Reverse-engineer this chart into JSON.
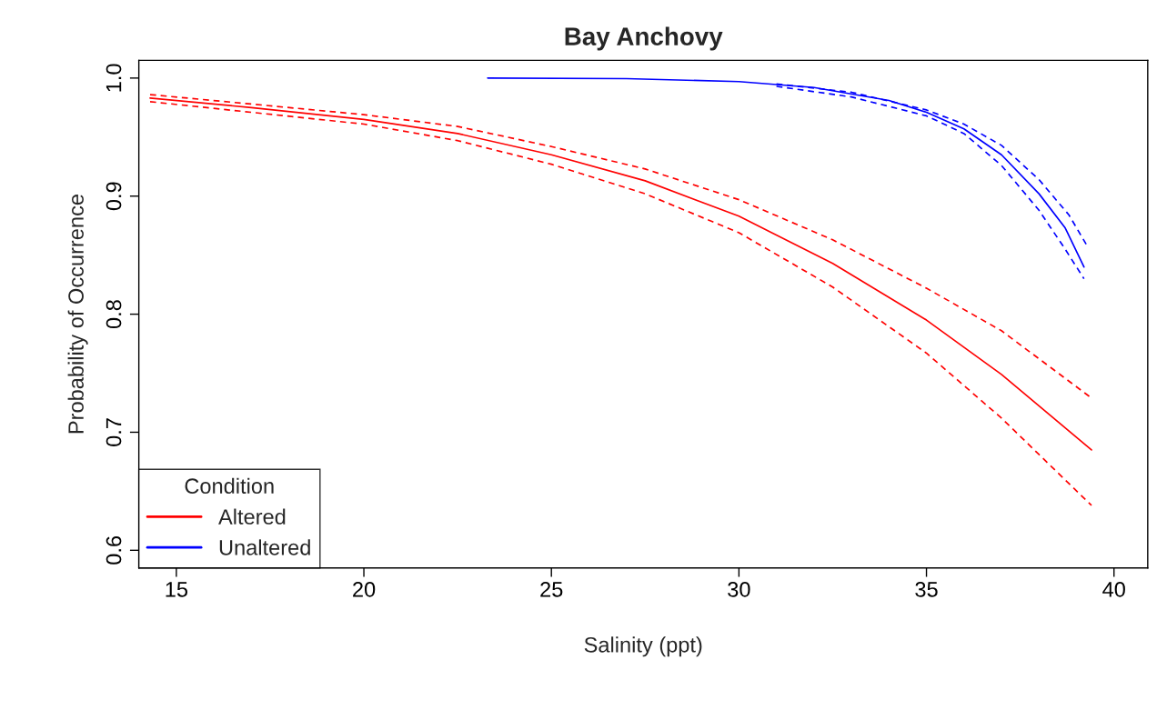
{
  "chart_data": {
    "type": "line",
    "title": "Bay Anchovy",
    "xlabel": "Salinity (ppt)",
    "ylabel": "Probability of Occurrence",
    "legend_title": "Condition",
    "xlim": [
      14.0,
      40.9
    ],
    "ylim": [
      0.585,
      1.015
    ],
    "xticks": [
      15,
      20,
      25,
      30,
      35,
      40
    ],
    "yticks": [
      0.6,
      0.7,
      0.8,
      0.9,
      {
        "value": 1.0,
        "label": "1.0"
      }
    ],
    "grid": false,
    "legend": "bottom left",
    "marker": "none",
    "series": [
      {
        "name": "Altered",
        "color": "#ff0000",
        "line_style": "solid",
        "x": [
          14.3,
          17,
          20,
          22.5,
          25,
          27.5,
          30,
          32.5,
          35,
          37,
          39.4
        ],
        "values": [
          0.983,
          0.975,
          0.965,
          0.953,
          0.935,
          0.913,
          0.883,
          0.843,
          0.795,
          0.749,
          0.685
        ]
      },
      {
        "name": "Unaltered",
        "color": "#0000ff",
        "line_style": "solid",
        "x": [
          23.3,
          27,
          30,
          32,
          34,
          35,
          36,
          37,
          38,
          38.7,
          39.2
        ],
        "values": [
          1.0,
          0.9995,
          0.997,
          0.992,
          0.981,
          0.971,
          0.957,
          0.935,
          0.902,
          0.873,
          0.84
        ]
      },
      {
        "color": "#ff0000",
        "line_style": "dashed",
        "x": [
          14.3,
          17,
          20,
          22.5,
          25,
          27.5,
          30,
          32.5,
          35,
          37,
          39.4
        ],
        "values": [
          0.986,
          0.978,
          0.969,
          0.959,
          0.942,
          0.923,
          0.897,
          0.863,
          0.822,
          0.786,
          0.729
        ]
      },
      {
        "color": "#ff0000",
        "line_style": "dashed",
        "x": [
          14.3,
          17,
          20,
          22.5,
          25,
          27.5,
          30,
          32.5,
          35,
          37,
          39.4
        ],
        "values": [
          0.98,
          0.971,
          0.961,
          0.947,
          0.927,
          0.902,
          0.869,
          0.823,
          0.767,
          0.712,
          0.638
        ]
      },
      {
        "color": "#0000ff",
        "line_style": "dashed",
        "x": [
          31,
          33,
          35,
          36,
          37,
          38,
          38.8,
          39.3
        ],
        "values": [
          0.995,
          0.988,
          0.973,
          0.961,
          0.943,
          0.914,
          0.884,
          0.857
        ]
      },
      {
        "color": "#0000ff",
        "line_style": "dashed",
        "x": [
          31,
          33,
          35,
          36,
          37,
          38,
          38.7,
          39.2
        ],
        "values": [
          0.993,
          0.984,
          0.968,
          0.953,
          0.926,
          0.888,
          0.855,
          0.83
        ]
      }
    ]
  }
}
